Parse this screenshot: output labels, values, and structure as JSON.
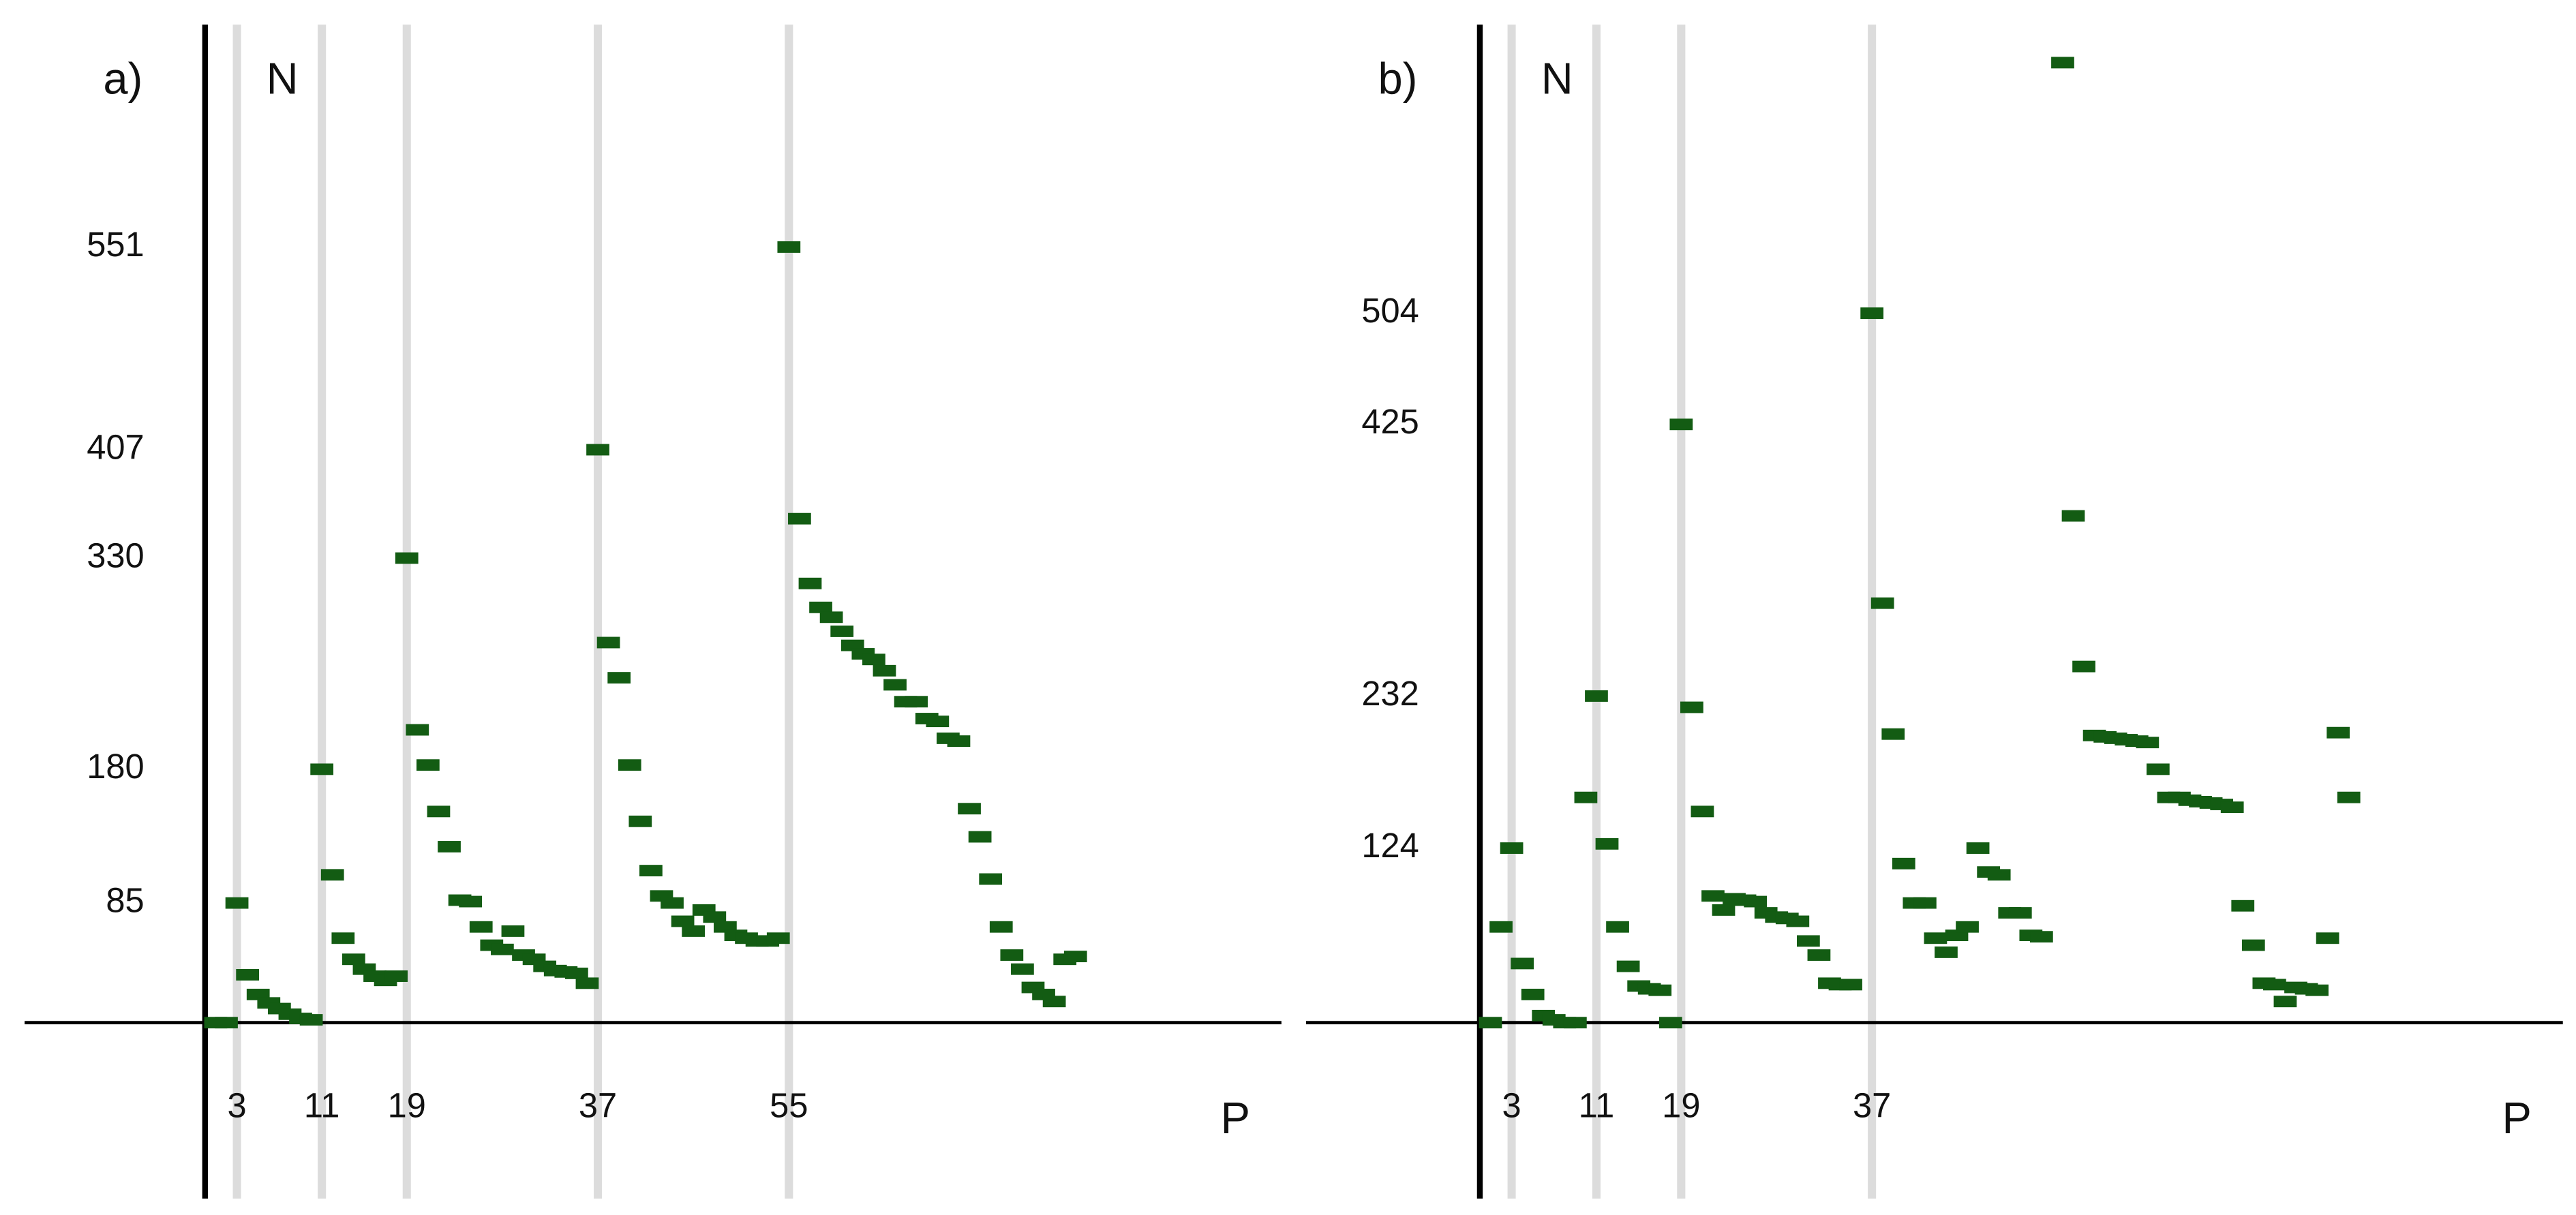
{
  "chart_data": [
    {
      "type": "scatter",
      "panel_label": "a)",
      "y_label": "N",
      "x_label": "P",
      "color": "#135c13",
      "grid": true,
      "x": [
        1,
        2,
        3,
        4,
        5,
        6,
        7,
        8,
        9,
        10,
        11,
        12,
        13,
        14,
        15,
        16,
        17,
        18,
        19,
        20,
        21,
        22,
        23,
        24,
        25,
        26,
        27,
        28,
        29,
        30,
        31,
        32,
        33,
        34,
        35,
        36,
        37,
        38,
        39,
        40,
        41,
        42,
        43,
        44,
        45,
        46,
        47,
        48,
        49,
        50,
        51,
        52,
        53,
        54,
        55,
        56,
        57,
        58,
        59,
        60,
        61,
        62,
        63,
        64,
        65,
        66,
        67,
        68,
        69,
        70,
        71,
        72,
        73,
        74,
        75,
        76,
        77,
        78,
        79,
        80,
        81,
        82
      ],
      "values": [
        0,
        0,
        85,
        34,
        20,
        14,
        10,
        6,
        3,
        2,
        180,
        105,
        60,
        45,
        38,
        33,
        30,
        33,
        330,
        208,
        183,
        150,
        125,
        87,
        86,
        68,
        55,
        52,
        65,
        48,
        45,
        40,
        37,
        36,
        35,
        28,
        407,
        270,
        245,
        183,
        143,
        108,
        90,
        85,
        72,
        65,
        80,
        75,
        68,
        62,
        60,
        58,
        58,
        60,
        551,
        358,
        312,
        295,
        288,
        278,
        268,
        262,
        258,
        250,
        240,
        228,
        228,
        216,
        214,
        202,
        200,
        152,
        132,
        102,
        68,
        48,
        38,
        25,
        20,
        15,
        45,
        47
      ],
      "xlim": [
        -17,
        101.4
      ],
      "ylim": [
        -125,
        709
      ],
      "xticks": [
        3,
        11,
        19,
        37,
        55
      ],
      "yticks": [
        85,
        180,
        330,
        407,
        551
      ]
    },
    {
      "type": "scatter",
      "panel_label": "b)",
      "y_label": "N",
      "x_label": "P",
      "color": "#135c13",
      "grid": true,
      "x": [
        1,
        2,
        3,
        4,
        5,
        6,
        7,
        8,
        9,
        10,
        11,
        12,
        13,
        14,
        15,
        16,
        17,
        18,
        19,
        20,
        21,
        22,
        23,
        24,
        25,
        26,
        27,
        28,
        29,
        30,
        31,
        32,
        33,
        34,
        35,
        37,
        38,
        39,
        40,
        41,
        42,
        43,
        44,
        45,
        46,
        47,
        48,
        49,
        50,
        51,
        52,
        53,
        55,
        56,
        57,
        58,
        59,
        60,
        61,
        62,
        63,
        64,
        65,
        66,
        67,
        68,
        69,
        70,
        71,
        72,
        73,
        74,
        75,
        76,
        77,
        78,
        79,
        80,
        81,
        82
      ],
      "values": [
        0,
        68,
        124,
        42,
        20,
        5,
        2,
        0,
        0,
        160,
        232,
        127,
        68,
        40,
        26,
        24,
        23,
        0,
        425,
        224,
        150,
        90,
        80,
        88,
        87,
        86,
        78,
        75,
        74,
        72,
        58,
        48,
        28,
        27,
        27,
        504,
        298,
        205,
        113,
        85,
        85,
        60,
        50,
        62,
        68,
        124,
        107,
        105,
        78,
        78,
        62,
        61,
        682,
        360,
        253,
        204,
        203,
        202,
        201,
        200,
        199,
        180,
        160,
        160,
        158,
        157,
        156,
        155,
        153,
        83,
        55,
        28,
        27,
        15,
        25,
        24,
        23,
        60,
        206,
        160
      ],
      "xlim": [
        -16.4,
        102.2
      ],
      "ylim": [
        -125,
        709
      ],
      "xticks": [
        3,
        11,
        19,
        37
      ],
      "yticks": [
        124,
        232,
        425,
        504
      ]
    }
  ]
}
